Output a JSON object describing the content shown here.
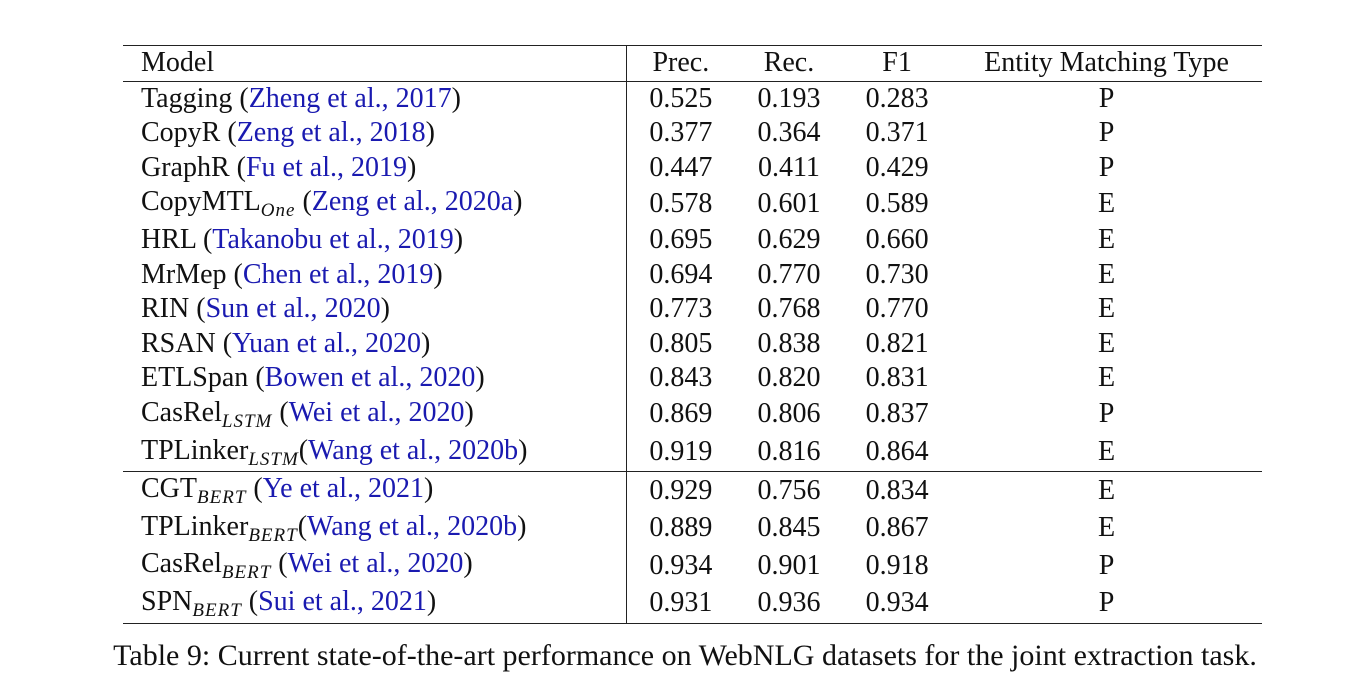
{
  "table": {
    "headers": {
      "model": "Model",
      "prec": "Prec.",
      "rec": "Rec.",
      "f1": "F1",
      "type": "Entity Matching Type"
    },
    "rows": [
      {
        "name": "Tagging",
        "sub": "",
        "open": " (",
        "cite_authors": "Zheng et al., ",
        "cite_year": "2017",
        "close": ")",
        "prec": "0.525",
        "rec": "0.193",
        "f1": "0.283",
        "type": "P"
      },
      {
        "name": "CopyR",
        "sub": "",
        "open": " (",
        "cite_authors": "Zeng et al., ",
        "cite_year": "2018",
        "close": ")",
        "prec": "0.377",
        "rec": "0.364",
        "f1": "0.371",
        "type": "P"
      },
      {
        "name": "GraphR",
        "sub": "",
        "open": " (",
        "cite_authors": "Fu et al., ",
        "cite_year": "2019",
        "close": ")",
        "prec": "0.447",
        "rec": "0.411",
        "f1": "0.429",
        "type": "P"
      },
      {
        "name": "CopyMTL",
        "sub": "One",
        "open": " (",
        "cite_authors": "Zeng et al., ",
        "cite_year": "2020a",
        "close": ")",
        "prec": "0.578",
        "rec": "0.601",
        "f1": "0.589",
        "type": "E"
      },
      {
        "name": "HRL",
        "sub": "",
        "open": " (",
        "cite_authors": "Takanobu et al., ",
        "cite_year": "2019",
        "close": ")",
        "prec": "0.695",
        "rec": "0.629",
        "f1": "0.660",
        "type": "E"
      },
      {
        "name": "MrMep",
        "sub": "",
        "open": " (",
        "cite_authors": "Chen et al., ",
        "cite_year": "2019",
        "close": ")",
        "prec": "0.694",
        "rec": "0.770",
        "f1": "0.730",
        "type": "E"
      },
      {
        "name": "RIN",
        "sub": "",
        "open": " (",
        "cite_authors": "Sun et al., ",
        "cite_year": "2020",
        "close": ")",
        "prec": "0.773",
        "rec": "0.768",
        "f1": "0.770",
        "type": "E"
      },
      {
        "name": "RSAN",
        "sub": "",
        "open": " (",
        "cite_authors": "Yuan et al., ",
        "cite_year": "2020",
        "close": ")",
        "prec": "0.805",
        "rec": "0.838",
        "f1": "0.821",
        "type": "E"
      },
      {
        "name": "ETLSpan",
        "sub": "",
        "open": " (",
        "cite_authors": "Bowen et al., ",
        "cite_year": "2020",
        "close": ")",
        "prec": "0.843",
        "rec": "0.820",
        "f1": "0.831",
        "type": "E"
      },
      {
        "name": "CasRel",
        "sub": "LSTM",
        "open": " (",
        "cite_authors": "Wei et al., ",
        "cite_year": "2020",
        "close": ")",
        "prec": "0.869",
        "rec": "0.806",
        "f1": "0.837",
        "type": "P"
      },
      {
        "name": "TPLinker",
        "sub": "LSTM",
        "open": "(",
        "cite_authors": "Wang et al., ",
        "cite_year": "2020b",
        "close": ")",
        "prec": "0.919",
        "rec": "0.816",
        "f1": "0.864",
        "type": "E"
      },
      {
        "name": "CGT",
        "sub": "BERT",
        "open": " (",
        "cite_authors": "Ye et al., ",
        "cite_year": "2021",
        "close": ")",
        "prec": "0.929",
        "rec": "0.756",
        "f1": "0.834",
        "type": "E"
      },
      {
        "name": "TPLinker",
        "sub": "BERT",
        "open": "(",
        "cite_authors": "Wang et al., ",
        "cite_year": "2020b",
        "close": ")",
        "prec": "0.889",
        "rec": "0.845",
        "f1": "0.867",
        "type": "E"
      },
      {
        "name": "CasRel",
        "sub": "BERT",
        "open": " (",
        "cite_authors": "Wei et al., ",
        "cite_year": "2020",
        "close": ")",
        "prec": "0.934",
        "rec": "0.901",
        "f1": "0.918",
        "type": "P"
      },
      {
        "name": "SPN",
        "sub": "BERT",
        "open": " (",
        "cite_authors": "Sui et al., ",
        "cite_year": "2021",
        "close": ")",
        "prec": "0.931",
        "rec": "0.936",
        "f1": "0.934",
        "type": "P"
      }
    ]
  },
  "caption": "Table 9: Current state-of-the-art performance on WebNLG datasets for the joint extraction task."
}
